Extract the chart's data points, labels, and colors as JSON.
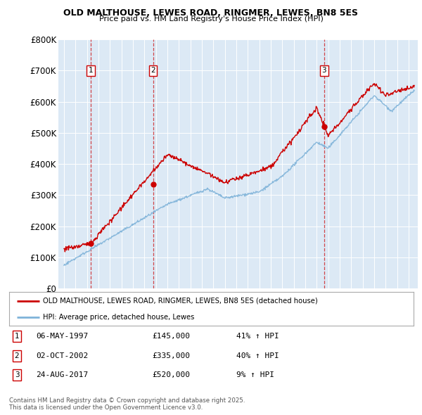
{
  "title1": "OLD MALTHOUSE, LEWES ROAD, RINGMER, LEWES, BN8 5ES",
  "title2": "Price paid vs. HM Land Registry's House Price Index (HPI)",
  "bg_color": "#dce9f5",
  "sale_dates": [
    1997.35,
    2002.75,
    2017.65
  ],
  "sale_prices": [
    145000,
    335000,
    520000
  ],
  "sale_labels": [
    "1",
    "2",
    "3"
  ],
  "legend_line1": "OLD MALTHOUSE, LEWES ROAD, RINGMER, LEWES, BN8 5ES (detached house)",
  "legend_line2": "HPI: Average price, detached house, Lewes",
  "table_data": [
    [
      "1",
      "06-MAY-1997",
      "£145,000",
      "41% ↑ HPI"
    ],
    [
      "2",
      "02-OCT-2002",
      "£335,000",
      "40% ↑ HPI"
    ],
    [
      "3",
      "24-AUG-2017",
      "£520,000",
      "9% ↑ HPI"
    ]
  ],
  "footer": "Contains HM Land Registry data © Crown copyright and database right 2025.\nThis data is licensed under the Open Government Licence v3.0.",
  "ylim": [
    0,
    800000
  ],
  "yticks": [
    0,
    100000,
    200000,
    300000,
    400000,
    500000,
    600000,
    700000,
    800000
  ],
  "ytick_labels": [
    "£0",
    "£100K",
    "£200K",
    "£300K",
    "£400K",
    "£500K",
    "£600K",
    "£700K",
    "£800K"
  ],
  "xlim": [
    1994.5,
    2025.8
  ],
  "red_color": "#cc0000",
  "blue_color": "#7fb3d9"
}
